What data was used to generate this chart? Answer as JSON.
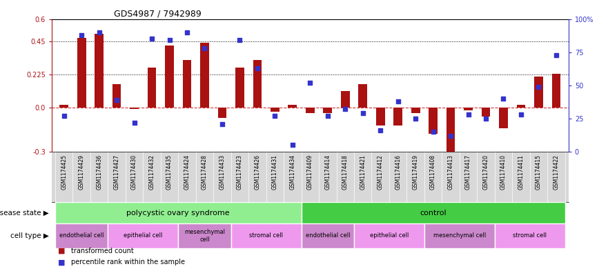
{
  "title": "GDS4987 / 7942989",
  "samples": [
    "GSM1174425",
    "GSM1174429",
    "GSM1174436",
    "GSM1174427",
    "GSM1174430",
    "GSM1174432",
    "GSM1174435",
    "GSM1174424",
    "GSM1174428",
    "GSM1174433",
    "GSM1174423",
    "GSM1174426",
    "GSM1174431",
    "GSM1174434",
    "GSM1174409",
    "GSM1174414",
    "GSM1174418",
    "GSM1174421",
    "GSM1174412",
    "GSM1174416",
    "GSM1174419",
    "GSM1174408",
    "GSM1174413",
    "GSM1174417",
    "GSM1174420",
    "GSM1174410",
    "GSM1174411",
    "GSM1174415",
    "GSM1174422"
  ],
  "bar_values": [
    0.02,
    0.47,
    0.5,
    0.16,
    -0.01,
    0.27,
    0.42,
    0.32,
    0.44,
    -0.07,
    0.27,
    0.32,
    -0.03,
    0.02,
    -0.04,
    -0.04,
    0.11,
    0.16,
    -0.12,
    -0.12,
    -0.04,
    -0.18,
    -0.3,
    -0.02,
    -0.06,
    -0.14,
    0.02,
    0.21,
    0.23
  ],
  "dot_values": [
    27,
    88,
    90,
    39,
    22,
    85,
    84,
    90,
    78,
    21,
    84,
    63,
    27,
    5,
    52,
    27,
    32,
    29,
    16,
    38,
    25,
    15,
    12,
    28,
    25,
    40,
    28,
    49,
    73
  ],
  "disease_state_groups": [
    {
      "label": "polycystic ovary syndrome",
      "start": 0,
      "end": 14,
      "color": "#90ee90"
    },
    {
      "label": "control",
      "start": 14,
      "end": 29,
      "color": "#44cc44"
    }
  ],
  "cell_type_groups": [
    {
      "label": "endothelial cell",
      "start": 0,
      "end": 3,
      "color": "#cc88cc"
    },
    {
      "label": "epithelial cell",
      "start": 3,
      "end": 7,
      "color": "#ee99ee"
    },
    {
      "label": "mesenchymal\ncell",
      "start": 7,
      "end": 10,
      "color": "#cc88cc"
    },
    {
      "label": "stromal cell",
      "start": 10,
      "end": 14,
      "color": "#ee99ee"
    },
    {
      "label": "endothelial cell",
      "start": 14,
      "end": 17,
      "color": "#cc88cc"
    },
    {
      "label": "epithelial cell",
      "start": 17,
      "end": 21,
      "color": "#ee99ee"
    },
    {
      "label": "mesenchymal cell",
      "start": 21,
      "end": 25,
      "color": "#cc88cc"
    },
    {
      "label": "stromal cell",
      "start": 25,
      "end": 29,
      "color": "#ee99ee"
    }
  ],
  "ylim_left": [
    -0.3,
    0.6
  ],
  "ylim_right": [
    0,
    100
  ],
  "yticks_left": [
    -0.3,
    0.0,
    0.225,
    0.45,
    0.6
  ],
  "yticks_right": [
    0,
    25,
    50,
    75,
    100
  ],
  "hlines": [
    0.225,
    0.45
  ],
  "bar_color": "#aa1111",
  "dot_color": "#3333cc",
  "zero_line_color": "#cc3333",
  "tick_label_bg": "#d8d8d8",
  "legend_items": [
    "transformed count",
    "percentile rank within the sample"
  ]
}
